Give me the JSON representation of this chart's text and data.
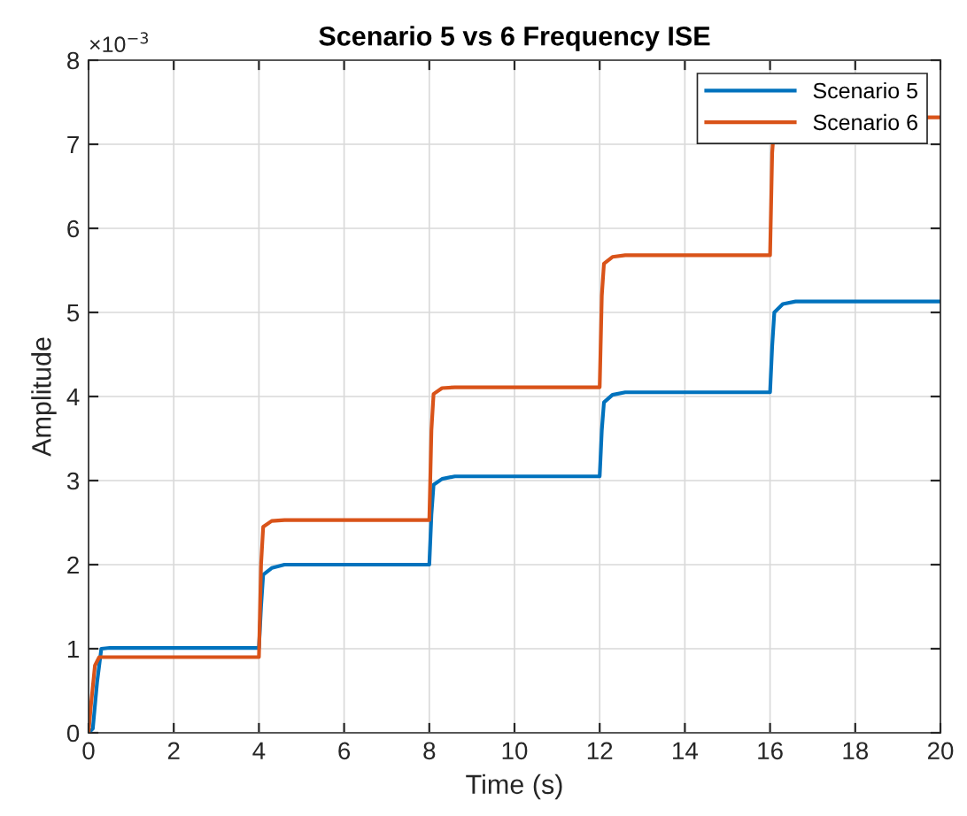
{
  "chart_data": {
    "type": "line",
    "title": "Scenario 5 vs 6 Frequency ISE",
    "xlabel": "Time (s)",
    "ylabel": "Amplitude",
    "annotations": [
      "×10$^{−3}$"
    ],
    "xlim": [
      0,
      20
    ],
    "ylim": [
      0,
      8
    ],
    "xticks": [
      0,
      2,
      4,
      6,
      8,
      10,
      12,
      14,
      16,
      18,
      20
    ],
    "yticks": [
      0,
      1,
      2,
      3,
      4,
      5,
      6,
      7,
      8
    ],
    "grid": true,
    "legend": "top right",
    "line_style": "solid",
    "marker": "none",
    "series": [
      {
        "name": "Scenario 5",
        "color": "#0072bd",
        "x": [
          0,
          0.1,
          0.2,
          0.3,
          0.5,
          4.0,
          4.05,
          4.1,
          4.3,
          4.6,
          8.0,
          8.05,
          8.1,
          8.3,
          8.6,
          12.0,
          12.05,
          12.1,
          12.3,
          12.6,
          16.0,
          16.05,
          16.1,
          16.3,
          16.6,
          20
        ],
        "values": [
          0,
          0.05,
          0.6,
          1.0,
          1.01,
          1.01,
          1.5,
          1.88,
          1.96,
          2.0,
          2.0,
          2.6,
          2.95,
          3.02,
          3.05,
          3.05,
          3.6,
          3.93,
          4.02,
          4.05,
          4.05,
          4.6,
          5.0,
          5.1,
          5.13,
          5.13
        ]
      },
      {
        "name": "Scenario 6",
        "color": "#d95319",
        "x": [
          0,
          0.05,
          0.15,
          0.25,
          0.5,
          4.0,
          4.05,
          4.1,
          4.3,
          4.6,
          8.0,
          8.05,
          8.1,
          8.3,
          8.6,
          12.0,
          12.05,
          12.1,
          12.3,
          12.6,
          16.0,
          16.05,
          16.1,
          16.3,
          16.6,
          20
        ],
        "values": [
          0,
          0.3,
          0.8,
          0.9,
          0.9,
          0.9,
          2.0,
          2.45,
          2.52,
          2.53,
          2.53,
          3.6,
          4.03,
          4.1,
          4.11,
          4.11,
          5.2,
          5.58,
          5.66,
          5.68,
          5.68,
          6.9,
          7.25,
          7.31,
          7.32,
          7.32
        ]
      }
    ]
  }
}
